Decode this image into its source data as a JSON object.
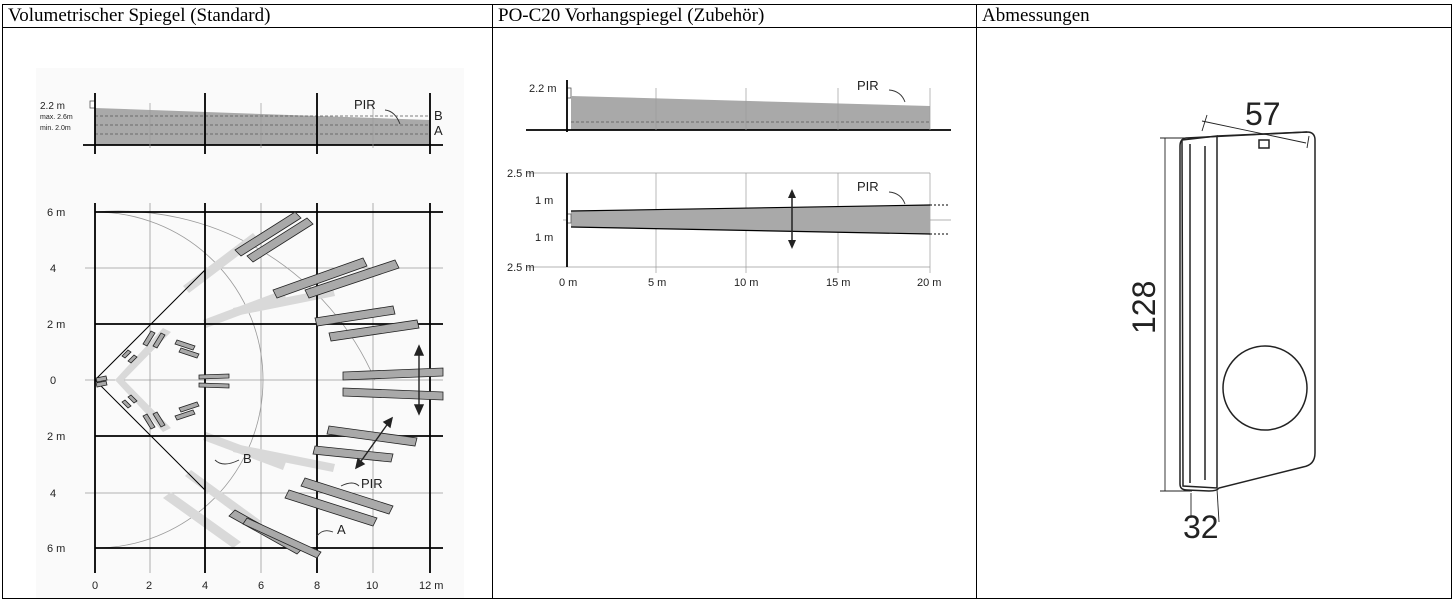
{
  "table": {
    "headers": [
      "Volumetrischer Spiegel (Standard)",
      "PO-C20 Vorhangspiegel (Zubehör)",
      "Abmessungen"
    ]
  },
  "volumetric": {
    "side_height": "2.2 m",
    "max_label": "max. 2.6m",
    "min_label": "min. 2.0m",
    "pir": "PIR",
    "label_a": "A",
    "label_b": "B",
    "y_labels": [
      "6 m",
      "4",
      "2 m",
      "0",
      "2 m",
      "4",
      "6 m"
    ],
    "x_labels": [
      "0",
      "2",
      "4",
      "6",
      "8",
      "10",
      "12 m"
    ],
    "top_view_pir": "PIR",
    "top_view_a": "A",
    "top_view_b": "B"
  },
  "curtain": {
    "side_height": "2.2 m",
    "pir": "PIR",
    "top_pir": "PIR",
    "width_top": "2.5 m",
    "width_1_top": "1 m",
    "width_1_bottom": "1 m",
    "width_bottom": "2.5 m",
    "x_labels": [
      "0 m",
      "5 m",
      "10 m",
      "15 m",
      "20 m"
    ]
  },
  "dimensions": {
    "width": "57",
    "height": "128",
    "depth": "32"
  },
  "colors": {
    "zone_fill": "#a9a9a9",
    "zone_light": "#d9d9d9",
    "grid_line": "#000000",
    "thin_grid": "#9a9a9a"
  }
}
